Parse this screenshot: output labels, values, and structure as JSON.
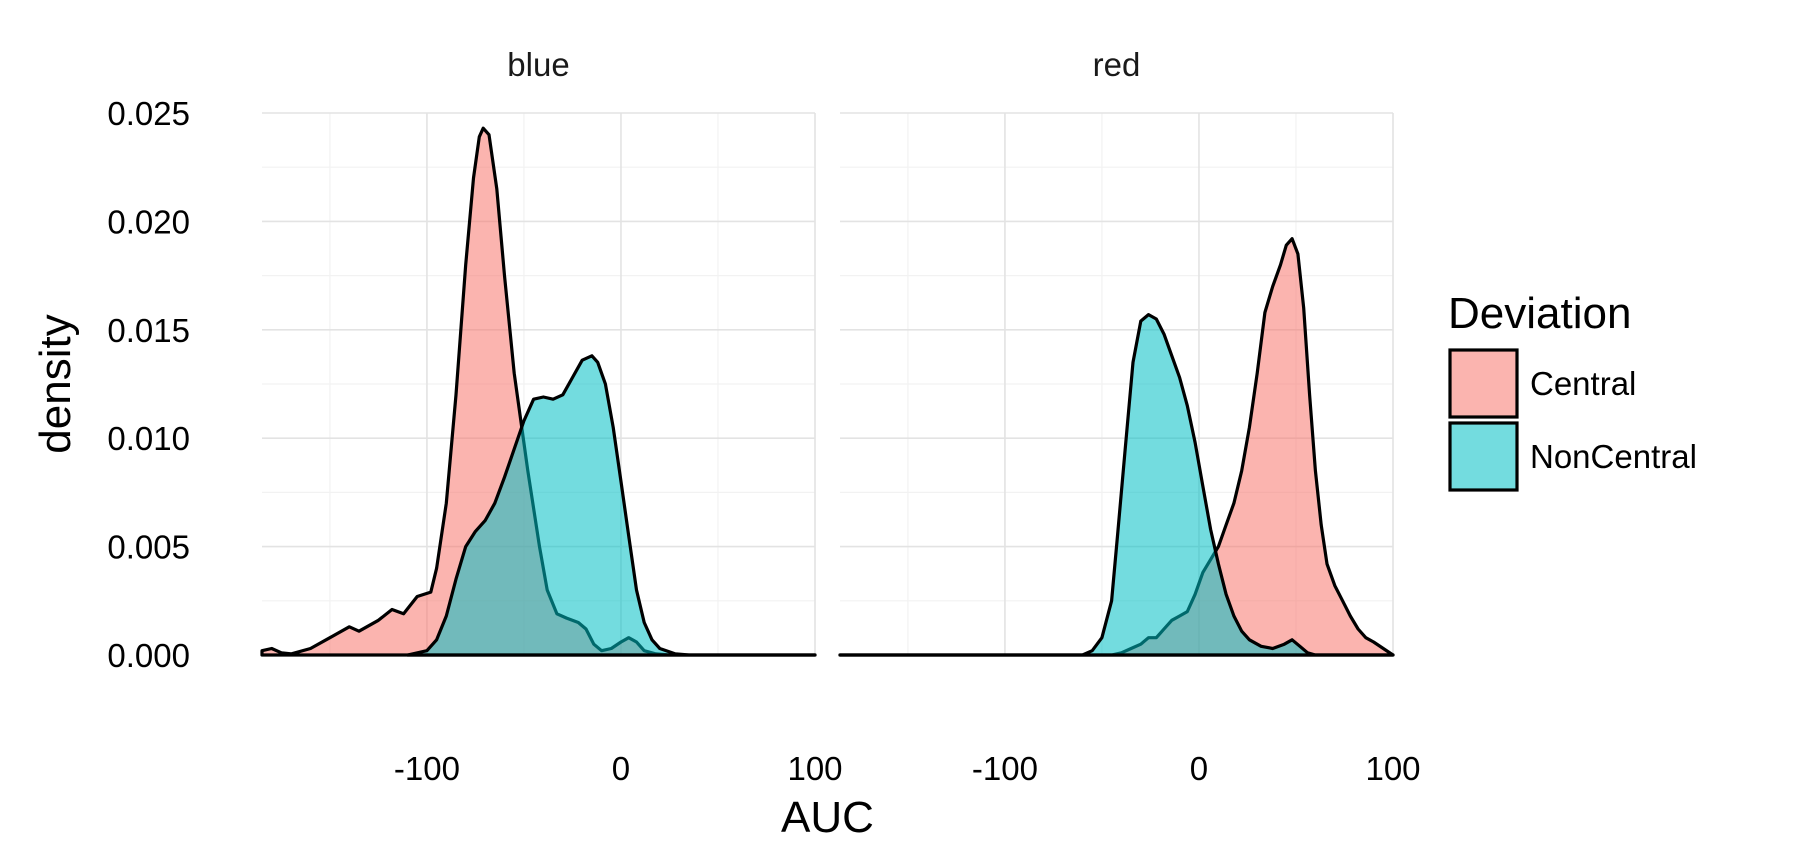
{
  "chart_data": {
    "type": "area",
    "subtype": "density",
    "xlabel": "AUC",
    "ylabel": "density",
    "xlim": [
      -185,
      100
    ],
    "ylim": [
      0,
      0.025
    ],
    "x_ticks": [
      -100,
      0,
      100
    ],
    "x_tick_labels": [
      "-100",
      "0",
      "100"
    ],
    "y_ticks": [
      0,
      0.005,
      0.01,
      0.015,
      0.02,
      0.025
    ],
    "y_tick_labels": [
      "0.000",
      "0.005",
      "0.010",
      "0.015",
      "0.020",
      "0.025"
    ],
    "grid": true,
    "legend": {
      "title": "Deviation",
      "position": "right",
      "entries": [
        {
          "label": "Central",
          "color": "#F8766D"
        },
        {
          "label": "NonCentral",
          "color": "#00BFC4"
        }
      ]
    },
    "facets": [
      {
        "label": "blue",
        "series": [
          {
            "name": "Central",
            "color": "#F8766D",
            "points": [
              [
                -185,
                0.0002
              ],
              [
                -180,
                0.0003
              ],
              [
                -175,
                0.0001
              ],
              [
                -170,
                5e-05
              ],
              [
                -160,
                0.0003
              ],
              [
                -150,
                0.0008
              ],
              [
                -140,
                0.0013
              ],
              [
                -135,
                0.0011
              ],
              [
                -125,
                0.0016
              ],
              [
                -118,
                0.0021
              ],
              [
                -112,
                0.0019
              ],
              [
                -105,
                0.0027
              ],
              [
                -98,
                0.0029
              ],
              [
                -95,
                0.004
              ],
              [
                -90,
                0.007
              ],
              [
                -85,
                0.012
              ],
              [
                -80,
                0.018
              ],
              [
                -76,
                0.022
              ],
              [
                -73,
                0.0239
              ],
              [
                -71,
                0.0243
              ],
              [
                -68,
                0.024
              ],
              [
                -64,
                0.0215
              ],
              [
                -60,
                0.0175
              ],
              [
                -55,
                0.013
              ],
              [
                -48,
                0.0085
              ],
              [
                -42,
                0.005
              ],
              [
                -38,
                0.003
              ],
              [
                -33,
                0.0019
              ],
              [
                -28,
                0.0017
              ],
              [
                -22,
                0.0015
              ],
              [
                -18,
                0.0012
              ],
              [
                -14,
                0.0005
              ],
              [
                -10,
                0.0002
              ],
              [
                -5,
                0.0003
              ],
              [
                0,
                0.0006
              ],
              [
                4,
                0.0008
              ],
              [
                8,
                0.0006
              ],
              [
                12,
                0.0002
              ],
              [
                18,
                5e-05
              ],
              [
                25,
                0.0
              ],
              [
                100,
                0.0
              ]
            ]
          },
          {
            "name": "NonCentral",
            "color": "#00BFC4",
            "points": [
              [
                -110,
                0.0
              ],
              [
                -100,
                0.0002
              ],
              [
                -95,
                0.0007
              ],
              [
                -90,
                0.0018
              ],
              [
                -85,
                0.0035
              ],
              [
                -80,
                0.005
              ],
              [
                -75,
                0.0057
              ],
              [
                -70,
                0.0062
              ],
              [
                -65,
                0.007
              ],
              [
                -60,
                0.0082
              ],
              [
                -55,
                0.0095
              ],
              [
                -50,
                0.0108
              ],
              [
                -45,
                0.0118
              ],
              [
                -40,
                0.0119
              ],
              [
                -35,
                0.0118
              ],
              [
                -30,
                0.012
              ],
              [
                -25,
                0.0128
              ],
              [
                -20,
                0.0136
              ],
              [
                -15,
                0.0138
              ],
              [
                -12,
                0.0135
              ],
              [
                -8,
                0.0125
              ],
              [
                -4,
                0.0105
              ],
              [
                0,
                0.008
              ],
              [
                4,
                0.0055
              ],
              [
                8,
                0.003
              ],
              [
                12,
                0.0015
              ],
              [
                16,
                0.0007
              ],
              [
                20,
                0.0003
              ],
              [
                28,
                5e-05
              ],
              [
                35,
                0.0
              ],
              [
                100,
                0.0
              ]
            ]
          }
        ]
      },
      {
        "label": "red",
        "series": [
          {
            "name": "Central",
            "color": "#F8766D",
            "points": [
              [
                -185,
                0.0
              ],
              [
                -45,
                0.0
              ],
              [
                -40,
                0.0001
              ],
              [
                -35,
                0.0003
              ],
              [
                -30,
                0.0005
              ],
              [
                -26,
                0.0008
              ],
              [
                -22,
                0.0008
              ],
              [
                -18,
                0.0012
              ],
              [
                -14,
                0.0016
              ],
              [
                -10,
                0.0018
              ],
              [
                -6,
                0.002
              ],
              [
                -2,
                0.0028
              ],
              [
                2,
                0.0038
              ],
              [
                6,
                0.0044
              ],
              [
                10,
                0.005
              ],
              [
                14,
                0.006
              ],
              [
                18,
                0.007
              ],
              [
                22,
                0.0085
              ],
              [
                26,
                0.0105
              ],
              [
                30,
                0.013
              ],
              [
                34,
                0.0158
              ],
              [
                38,
                0.017
              ],
              [
                42,
                0.018
              ],
              [
                45,
                0.0189
              ],
              [
                48,
                0.0192
              ],
              [
                51,
                0.0185
              ],
              [
                54,
                0.016
              ],
              [
                57,
                0.012
              ],
              [
                60,
                0.0085
              ],
              [
                63,
                0.006
              ],
              [
                66,
                0.0042
              ],
              [
                70,
                0.0032
              ],
              [
                74,
                0.0025
              ],
              [
                78,
                0.0018
              ],
              [
                82,
                0.0012
              ],
              [
                86,
                0.0008
              ],
              [
                90,
                0.0006
              ],
              [
                95,
                0.0003
              ],
              [
                100,
                0.0
              ]
            ]
          },
          {
            "name": "NonCentral",
            "color": "#00BFC4",
            "points": [
              [
                -185,
                0.0
              ],
              [
                -60,
                0.0
              ],
              [
                -55,
                0.0002
              ],
              [
                -50,
                0.0008
              ],
              [
                -45,
                0.0025
              ],
              [
                -42,
                0.0055
              ],
              [
                -38,
                0.0095
              ],
              [
                -34,
                0.0135
              ],
              [
                -30,
                0.0154
              ],
              [
                -26,
                0.0157
              ],
              [
                -22,
                0.0155
              ],
              [
                -18,
                0.0148
              ],
              [
                -14,
                0.0138
              ],
              [
                -10,
                0.0128
              ],
              [
                -6,
                0.0115
              ],
              [
                -2,
                0.0098
              ],
              [
                2,
                0.0078
              ],
              [
                6,
                0.0058
              ],
              [
                10,
                0.0042
              ],
              [
                14,
                0.0028
              ],
              [
                18,
                0.0018
              ],
              [
                22,
                0.0011
              ],
              [
                26,
                0.0007
              ],
              [
                32,
                0.0004
              ],
              [
                38,
                0.0003
              ],
              [
                44,
                0.0005
              ],
              [
                48,
                0.0007
              ],
              [
                52,
                0.0004
              ],
              [
                56,
                0.0001
              ],
              [
                60,
                0.0
              ],
              [
                100,
                0.0
              ]
            ]
          }
        ]
      }
    ]
  }
}
